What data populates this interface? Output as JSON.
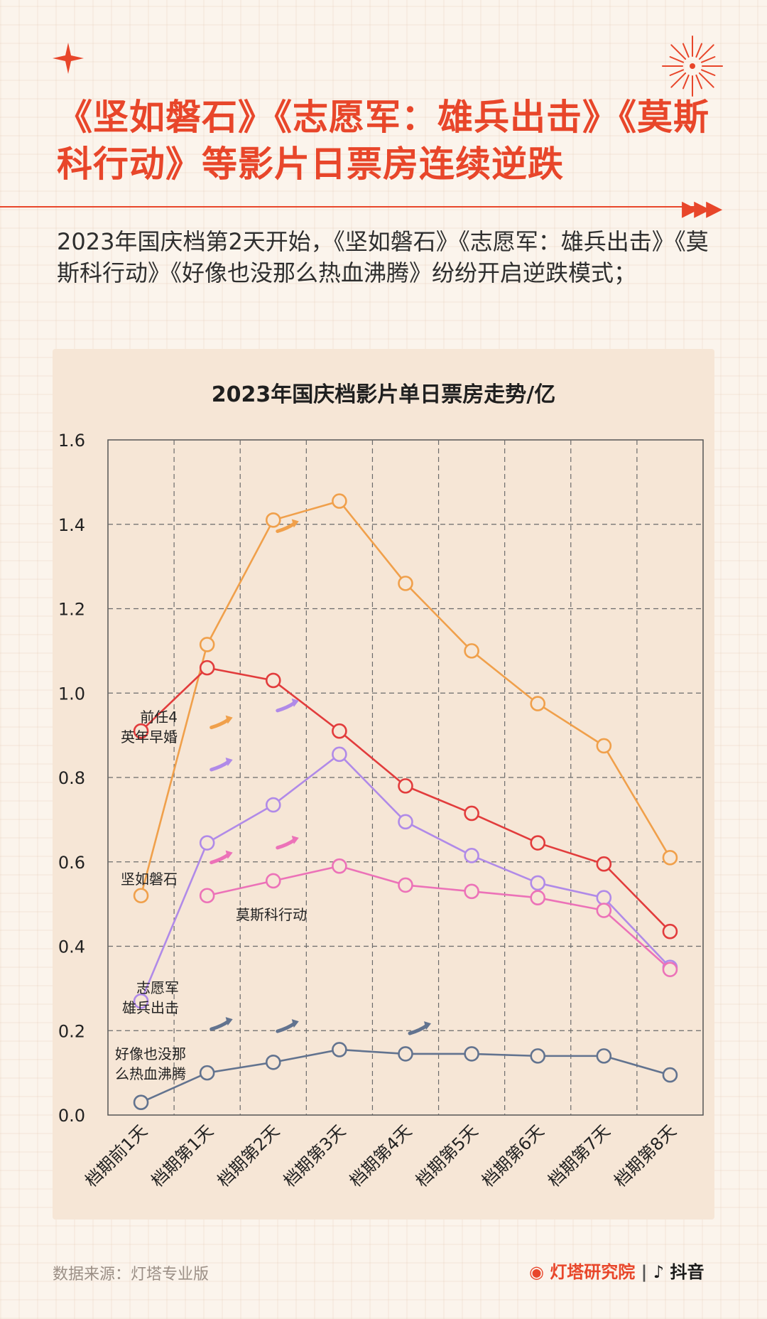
{
  "header": {
    "title": "《坚如磐石》《志愿军：雄兵出击》《莫斯科行动》等影片日票房连续逆跌",
    "subtitle": "2023年国庆档第2天开始，《坚如磐石》《志愿军：雄兵出击》《莫斯科行动》《好像也没那么热血沸腾》纷纷开启逆跌模式；"
  },
  "footer": {
    "source": "数据来源：灯塔专业版",
    "brand1": "灯塔研究院",
    "brand2": "抖音"
  },
  "colors": {
    "accent": "#e8462a",
    "background": "#fbf4ec",
    "chart_bg": "#f6e6d6"
  },
  "chart_data": {
    "type": "line",
    "title": "2023年国庆档影片单日票房走势/亿",
    "ylim": [
      0,
      1.6
    ],
    "yticks": [
      "0.0",
      "0.2",
      "0.4",
      "0.6",
      "0.8",
      "1.0",
      "1.2",
      "1.4",
      "1.6"
    ],
    "grid": true,
    "categories": [
      "档期前1天",
      "档期第1天",
      "档期第2天",
      "档期第3天",
      "档期第4天",
      "档期第5天",
      "档期第6天",
      "档期第7天",
      "档期第8天"
    ],
    "series": [
      {
        "name": "坚如磐石",
        "color": "#f0a04b",
        "values": [
          0.52,
          1.115,
          1.41,
          1.455,
          1.26,
          1.1,
          0.975,
          0.875,
          0.61
        ]
      },
      {
        "name": "前任4 英年早婚",
        "color": "#e23c3c",
        "values": [
          0.91,
          1.06,
          1.03,
          0.91,
          0.78,
          0.715,
          0.645,
          0.595,
          0.435
        ]
      },
      {
        "name": "志愿军 雄兵出击",
        "color": "#b08ae8",
        "values": [
          0.27,
          0.645,
          0.735,
          0.855,
          0.695,
          0.615,
          0.55,
          0.515,
          0.35
        ]
      },
      {
        "name": "莫斯科行动",
        "color": "#ec72b8",
        "values": [
          null,
          0.52,
          0.555,
          0.59,
          0.545,
          0.53,
          0.515,
          0.485,
          0.345
        ]
      },
      {
        "name": "好像也没那么热血沸腾",
        "color": "#62738f",
        "values": [
          0.03,
          0.1,
          0.125,
          0.155,
          0.145,
          0.145,
          0.14,
          0.14,
          0.095
        ]
      }
    ],
    "series_labels": [
      {
        "lines": [
          "前任4",
          "英年早婚"
        ]
      },
      {
        "lines": [
          "坚如磐石"
        ]
      },
      {
        "lines": [
          "莫斯科行动"
        ]
      },
      {
        "lines": [
          "志愿军",
          "雄兵出击"
        ]
      },
      {
        "lines": [
          "好像也没那",
          "么热血沸腾"
        ]
      }
    ]
  }
}
